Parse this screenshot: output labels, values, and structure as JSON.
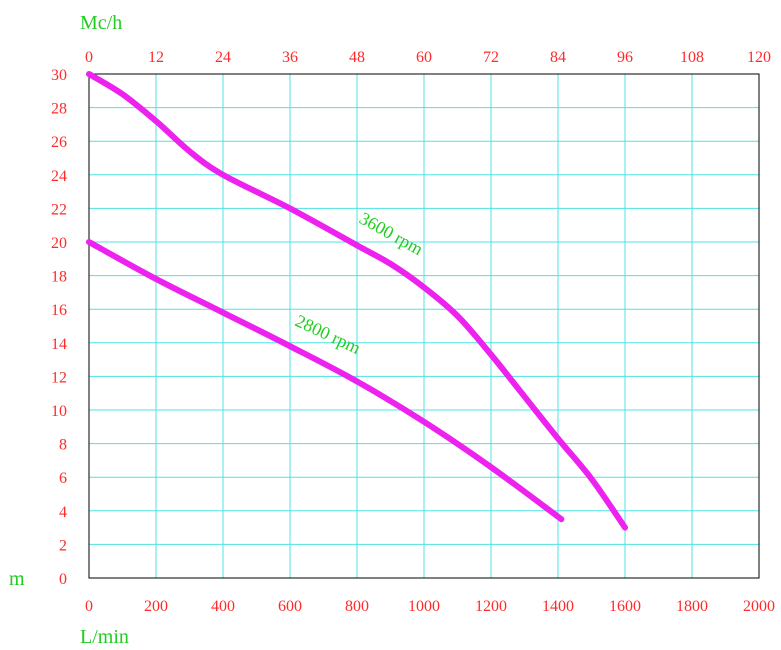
{
  "chart_data": {
    "type": "line",
    "x_bottom_label": "L/min",
    "x_top_label": "Mc/h",
    "y_label": "m",
    "x_bottom_ticks": [
      "0",
      "200",
      "400",
      "600",
      "800",
      "1000",
      "1200",
      "1400",
      "1600",
      "1800",
      "2000"
    ],
    "x_top_ticks": [
      "0",
      "12",
      "24",
      "36",
      "48",
      "60",
      "72",
      "84",
      "96",
      "108",
      "120"
    ],
    "y_ticks": [
      "0",
      "2",
      "4",
      "6",
      "8",
      "10",
      "12",
      "14",
      "16",
      "18",
      "20",
      "22",
      "24",
      "26",
      "28",
      "30"
    ],
    "xlim": [
      0,
      2000
    ],
    "ylim": [
      0,
      30
    ],
    "grid": true,
    "colors": {
      "grid": "#4fe3e3",
      "axis": "#000000",
      "ticks": "#ff2a2a",
      "labels": "#22cc22",
      "curves": "#ee22ee"
    },
    "series": [
      {
        "name": "3600 rpm",
        "x": [
          0,
          100,
          200,
          300,
          400,
          600,
          800,
          900,
          1000,
          1100,
          1200,
          1300,
          1400,
          1500,
          1600
        ],
        "y": [
          30,
          28.8,
          27.2,
          25.4,
          24.0,
          22.0,
          19.8,
          18.7,
          17.3,
          15.6,
          13.3,
          10.8,
          8.3,
          5.9,
          3.0
        ]
      },
      {
        "name": "2800 rpm",
        "x": [
          0,
          200,
          400,
          600,
          800,
          1000,
          1200,
          1410
        ],
        "y": [
          20,
          17.8,
          15.8,
          13.8,
          11.7,
          9.3,
          6.6,
          3.5
        ]
      }
    ]
  }
}
